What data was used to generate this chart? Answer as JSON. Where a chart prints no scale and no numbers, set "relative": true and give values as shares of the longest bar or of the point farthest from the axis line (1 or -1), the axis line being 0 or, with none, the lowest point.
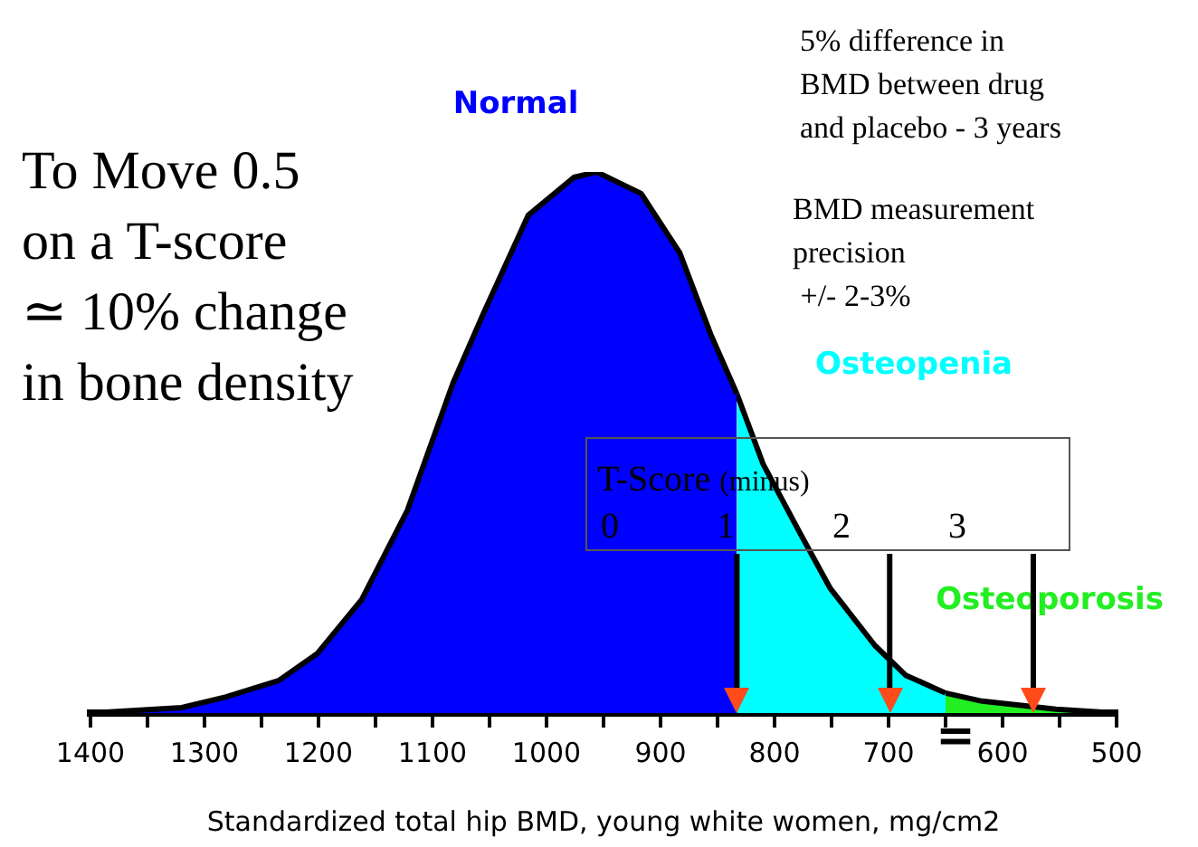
{
  "chart_data": {
    "type": "area",
    "relative": true,
    "xlabel": "Standardized total hip BMD, young white women, mg/cm2",
    "xlim": [
      1400,
      500
    ],
    "xticks": [
      1400,
      {
        "value": 1350,
        "label": null
      },
      1300,
      {
        "value": 1250,
        "label": null
      },
      1200,
      {
        "value": 1150,
        "label": null
      },
      1100,
      {
        "value": 1050,
        "label": null
      },
      1000,
      {
        "value": 950,
        "label": null
      },
      900,
      {
        "value": 850,
        "label": null
      },
      800,
      {
        "value": 750,
        "label": null
      },
      700,
      {
        "value": 650,
        "label": null
      },
      600,
      {
        "value": 550,
        "label": null
      },
      500
    ],
    "series": [
      {
        "name": "Normal",
        "color": "#0000ff",
        "x": [
          1400,
          1320,
          1281,
          1235,
          1201,
          1162,
          1122,
          1082,
          1055,
          1016,
          976,
          956,
          917,
          883,
          856,
          833
        ],
        "values": [
          0,
          0.01,
          0.03,
          0.06,
          0.11,
          0.21,
          0.375,
          0.61,
          0.74,
          0.92,
          0.99,
          1,
          0.96,
          0.85,
          0.7,
          0.59
        ]
      },
      {
        "name": "Osteopenia",
        "color": "#00ffff",
        "x": [
          833,
          810,
          777,
          751,
          712,
          685,
          650
        ],
        "values": [
          0.59,
          0.46,
          0.33,
          0.23,
          0.125,
          0.07,
          0.037
        ]
      },
      {
        "name": "Osteoporosis",
        "color": "#22ee22",
        "x": [
          650,
          618,
          553,
          500
        ],
        "values": [
          0.037,
          0.022,
          0.007,
          0
        ]
      }
    ],
    "annotations": [
      "To Move 0.5\non a T-score\n≃ 10% change\nin bone density",
      "5% difference in\nBMD between drug\nand placebo - 3 years",
      "BMD measurement\nprecision\n +/- 2-3%",
      "T-Score (minus)",
      "0",
      "1",
      "2",
      "3",
      "="
    ],
    "ref_lines": [
      {
        "axis": "x",
        "value": 833,
        "color": "#000000"
      },
      {
        "axis": "x",
        "value": 699,
        "color": "#000000"
      },
      {
        "axis": "x",
        "value": 573,
        "color": "#000000"
      }
    ],
    "grid": false,
    "legend": false,
    "marker": "none",
    "line_style": "solid"
  }
}
